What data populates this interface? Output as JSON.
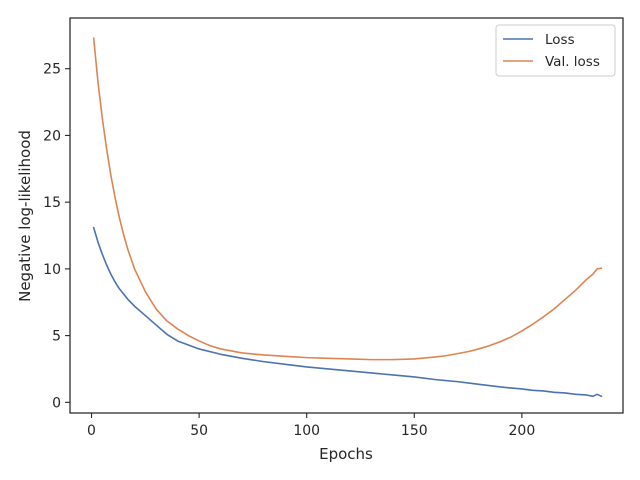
{
  "chart_data": {
    "type": "line",
    "title": "",
    "xlabel": "Epochs",
    "ylabel": "Negative log-likelihood",
    "xlim": [
      -10,
      247
    ],
    "ylim": [
      -0.8,
      28.8
    ],
    "xticks": [
      0,
      50,
      100,
      150,
      200
    ],
    "yticks": [
      0,
      5,
      10,
      15,
      20,
      25
    ],
    "grid": false,
    "legend_position": "top-right",
    "series": [
      {
        "name": "Loss",
        "color": "#4c72b0",
        "x": [
          1,
          3,
          5,
          7,
          9,
          11,
          13,
          15,
          17,
          20,
          25,
          30,
          35,
          40,
          45,
          50,
          60,
          70,
          80,
          90,
          100,
          110,
          120,
          130,
          140,
          150,
          160,
          170,
          180,
          190,
          200,
          205,
          210,
          215,
          220,
          225,
          230,
          233,
          235,
          237
        ],
        "values": [
          13.1,
          12.0,
          11.1,
          10.3,
          9.6,
          9.0,
          8.5,
          8.1,
          7.7,
          7.2,
          6.5,
          5.8,
          5.1,
          4.6,
          4.3,
          4.0,
          3.6,
          3.3,
          3.05,
          2.85,
          2.65,
          2.5,
          2.35,
          2.2,
          2.05,
          1.9,
          1.7,
          1.55,
          1.35,
          1.15,
          1.0,
          0.9,
          0.85,
          0.75,
          0.7,
          0.6,
          0.55,
          0.45,
          0.6,
          0.45
        ]
      },
      {
        "name": "Val. loss",
        "color": "#dd8452",
        "x": [
          1,
          3,
          5,
          7,
          9,
          11,
          13,
          15,
          17,
          20,
          25,
          30,
          35,
          40,
          45,
          50,
          55,
          60,
          70,
          80,
          90,
          100,
          110,
          120,
          130,
          140,
          150,
          160,
          165,
          170,
          175,
          180,
          185,
          190,
          195,
          200,
          205,
          210,
          215,
          220,
          225,
          230,
          233,
          235,
          237
        ],
        "values": [
          27.3,
          24.0,
          21.3,
          19.0,
          17.0,
          15.3,
          13.8,
          12.5,
          11.4,
          10.0,
          8.3,
          7.0,
          6.1,
          5.5,
          5.0,
          4.6,
          4.25,
          4.0,
          3.7,
          3.55,
          3.45,
          3.35,
          3.3,
          3.25,
          3.2,
          3.2,
          3.25,
          3.4,
          3.5,
          3.65,
          3.8,
          4.0,
          4.25,
          4.55,
          4.9,
          5.35,
          5.85,
          6.4,
          7.0,
          7.7,
          8.4,
          9.2,
          9.6,
          10.0,
          10.05
        ]
      }
    ]
  }
}
